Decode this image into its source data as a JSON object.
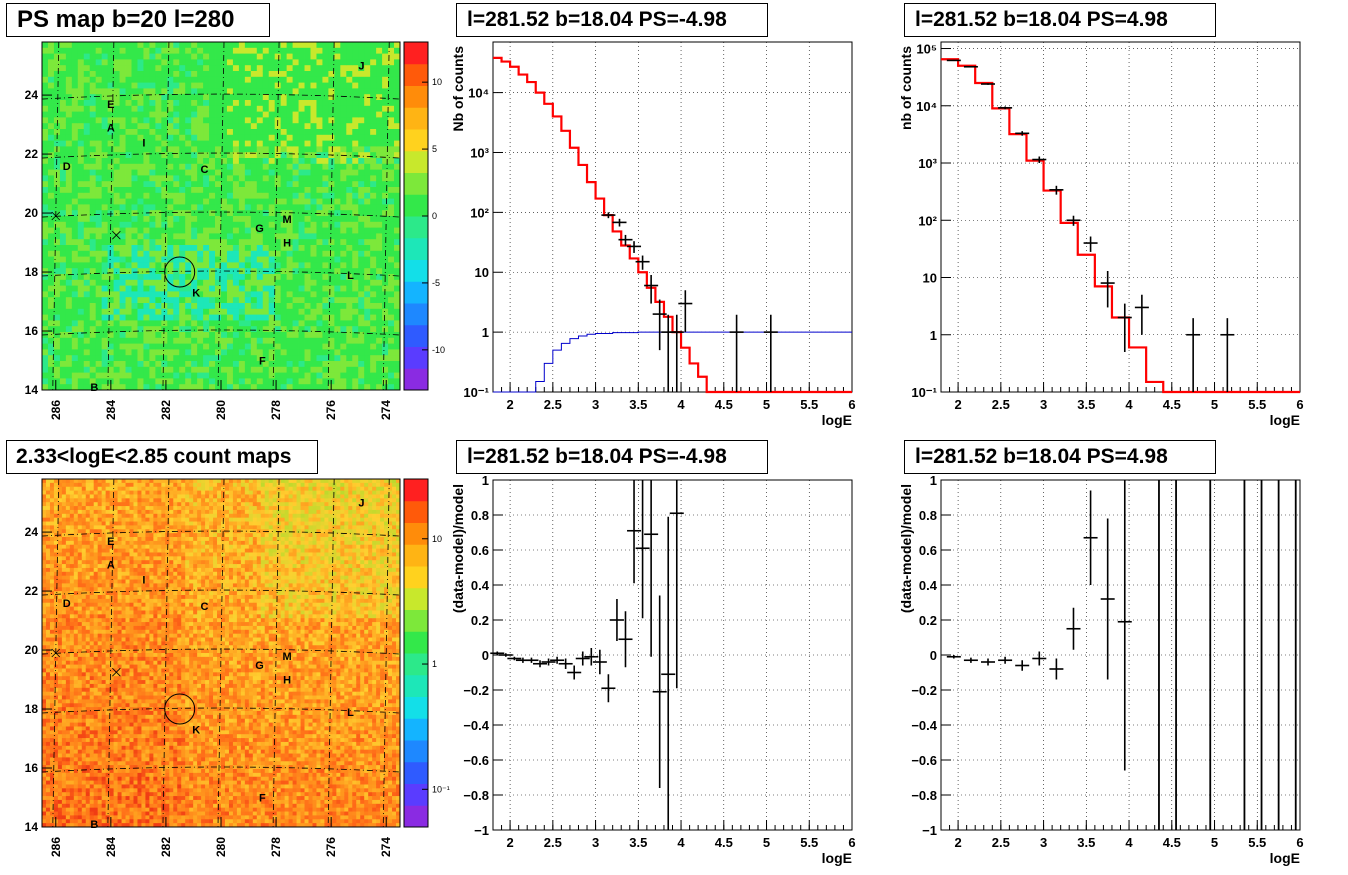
{
  "panels": {
    "map_ps": {
      "title": "PS map b=20 l=280",
      "xticks": [
        "286",
        "284",
        "282",
        "280",
        "278",
        "276",
        "274"
      ],
      "yticks": [
        "14",
        "16",
        "18",
        "20",
        "22",
        "24"
      ],
      "colorbar_ticks": [
        "10",
        "5",
        "0",
        "-5",
        "-10"
      ],
      "labels": [
        "A",
        "B",
        "C",
        "D",
        "E",
        "F",
        "G",
        "H",
        "I",
        "J",
        "K",
        "L",
        "M"
      ]
    },
    "map_counts": {
      "title": "2.33<logE<2.85 count maps",
      "xticks": [
        "286",
        "284",
        "282",
        "280",
        "278",
        "276",
        "274"
      ],
      "yticks": [
        "14",
        "16",
        "18",
        "20",
        "22",
        "24"
      ],
      "colorbar_ticks": [
        "10",
        "1",
        "10⁻¹"
      ],
      "labels": [
        "A",
        "B",
        "C",
        "D",
        "E",
        "F",
        "G",
        "H",
        "I",
        "J",
        "K",
        "L",
        "M"
      ]
    },
    "spec_neg": {
      "title": "l=281.52 b=18.04 PS=-4.98",
      "xlabel": "logE",
      "ylabel": "Nb of counts",
      "xticks": [
        "2",
        "2.5",
        "3",
        "3.5",
        "4",
        "4.5",
        "5",
        "5.5",
        "6"
      ],
      "yticks": [
        "10⁻¹",
        "1",
        "10",
        "10²",
        "10³",
        "10⁴"
      ]
    },
    "spec_pos": {
      "title": "l=281.52 b=18.04 PS=4.98",
      "xlabel": "logE",
      "ylabel": "nb of counts",
      "xticks": [
        "2",
        "2.5",
        "3",
        "3.5",
        "4",
        "4.5",
        "5",
        "5.5",
        "6"
      ],
      "yticks": [
        "10⁻¹",
        "1",
        "10",
        "10²",
        "10³",
        "10⁴",
        "10⁵"
      ]
    },
    "res_neg": {
      "title": "l=281.52 b=18.04 PS=-4.98",
      "xlabel": "logE",
      "ylabel": "(data-model)/model",
      "xticks": [
        "2",
        "2.5",
        "3",
        "3.5",
        "4",
        "4.5",
        "5",
        "5.5",
        "6"
      ],
      "yticks": [
        "−1",
        "−0.8",
        "−0.6",
        "−0.4",
        "−0.2",
        "0",
        "0.2",
        "0.4",
        "0.6",
        "0.8",
        "1"
      ]
    },
    "res_pos": {
      "title": "l=281.52 b=18.04 PS=4.98",
      "xlabel": "logE",
      "ylabel": "(data-model)/model",
      "xticks": [
        "2",
        "2.5",
        "3",
        "3.5",
        "4",
        "4.5",
        "5",
        "5.5",
        "6"
      ],
      "yticks": [
        "−1",
        "−0.8",
        "−0.6",
        "−0.4",
        "−0.2",
        "0",
        "0.2",
        "0.4",
        "0.6",
        "0.8",
        "1"
      ]
    }
  },
  "colors": {
    "model_line": "#ff0000",
    "exposure_line": "#0000cc",
    "data": "#000000",
    "map_green": "#33e84a",
    "map_orange": "#ff8c00"
  },
  "chart_data": [
    {
      "type": "heatmap",
      "title": "PS map b=20 l=280",
      "xlabel": "",
      "ylabel": "",
      "xlim": [
        286.5,
        273.5
      ],
      "ylim": [
        14,
        25.8
      ],
      "colorbar_range": [
        -13,
        13
      ],
      "markers": [
        {
          "label": "A",
          "x": 284.0,
          "y": 22.9
        },
        {
          "label": "B",
          "x": 284.6,
          "y": 14.1
        },
        {
          "label": "C",
          "x": 280.6,
          "y": 21.5
        },
        {
          "label": "D",
          "x": 285.6,
          "y": 21.6
        },
        {
          "label": "E",
          "x": 284.0,
          "y": 23.7
        },
        {
          "label": "F",
          "x": 278.5,
          "y": 15.0
        },
        {
          "label": "G",
          "x": 278.6,
          "y": 19.5
        },
        {
          "label": "H",
          "x": 277.6,
          "y": 19.0
        },
        {
          "label": "I",
          "x": 282.8,
          "y": 22.4
        },
        {
          "label": "J",
          "x": 274.9,
          "y": 25.0
        },
        {
          "label": "K",
          "x": 280.9,
          "y": 17.3
        },
        {
          "label": "L",
          "x": 275.3,
          "y": 17.9
        },
        {
          "label": "M",
          "x": 277.6,
          "y": 19.8
        }
      ],
      "source_circle": {
        "x": 281.5,
        "y": 18.0
      }
    },
    {
      "type": "heatmap",
      "title": "2.33<logE<2.85 count maps",
      "xlabel": "",
      "ylabel": "",
      "xlim": [
        286.5,
        273.5
      ],
      "ylim": [
        14,
        25.8
      ],
      "colorbar_scale": "log",
      "colorbar_range": [
        0.05,
        30
      ],
      "source_circle": {
        "x": 281.5,
        "y": 18.0
      }
    },
    {
      "type": "line",
      "title": "l=281.52 b=18.04 PS=-4.98",
      "xlabel": "logE",
      "ylabel": "Nb of counts",
      "xlim": [
        1.8,
        6
      ],
      "ylim": [
        0.1,
        70000
      ],
      "yscale": "log",
      "series": [
        {
          "name": "",
          "style": "model",
          "x": [
            1.8,
            1.9,
            2.0,
            2.1,
            2.2,
            2.3,
            2.4,
            2.5,
            2.6,
            2.7,
            2.8,
            2.9,
            3.0,
            3.1,
            3.2,
            3.3,
            3.4,
            3.5,
            3.6,
            3.7,
            3.8,
            3.9,
            4.0,
            4.1,
            4.2,
            4.3,
            6.0
          ],
          "y": [
            38000,
            33000,
            27000,
            20000,
            15000,
            10000,
            6500,
            4000,
            2300,
            1200,
            620,
            320,
            170,
            90,
            48,
            28,
            17,
            10,
            5.5,
            3.2,
            1.8,
            1.0,
            0.55,
            0.3,
            0.18,
            0.1,
            0.1
          ]
        },
        {
          "name": "",
          "style": "exposure",
          "x": [
            1.8,
            2.2,
            2.3,
            2.4,
            2.5,
            2.6,
            2.7,
            2.8,
            2.9,
            3.0,
            3.2,
            3.5,
            4.0,
            6.0
          ],
          "y": [
            0.1,
            0.1,
            0.15,
            0.3,
            0.5,
            0.65,
            0.78,
            0.86,
            0.92,
            0.95,
            0.98,
            1.0,
            1.0,
            1.0
          ]
        },
        {
          "name": "",
          "style": "data",
          "x": [
            3.15,
            3.28,
            3.35,
            3.45,
            3.55,
            3.65,
            3.75,
            3.85,
            3.95,
            4.05,
            4.65,
            5.05
          ],
          "y": [
            90,
            68,
            35,
            27,
            15,
            6,
            2,
            1,
            1,
            3,
            1,
            1
          ],
          "err": [
            10,
            10,
            7,
            6,
            4,
            3,
            1.5,
            0.95,
            0.95,
            2,
            0.95,
            0.95
          ]
        }
      ]
    },
    {
      "type": "line",
      "title": "l=281.52 b=18.04 PS=4.98",
      "xlabel": "logE",
      "ylabel": "nb of counts",
      "xlim": [
        1.8,
        6
      ],
      "ylim": [
        0.1,
        130000
      ],
      "yscale": "log",
      "series": [
        {
          "name": "",
          "style": "model",
          "x": [
            1.8,
            2.0,
            2.2,
            2.4,
            2.6,
            2.8,
            3.0,
            3.2,
            3.4,
            3.6,
            3.8,
            4.0,
            4.2,
            4.4,
            6.0
          ],
          "y": [
            65000,
            50000,
            25000,
            9000,
            3200,
            1100,
            330,
            90,
            25,
            7,
            2,
            0.6,
            0.15,
            0.1,
            0.1
          ]
        },
        {
          "name": "",
          "style": "data",
          "x": [
            1.95,
            2.15,
            2.35,
            2.55,
            2.75,
            2.95,
            3.15,
            3.35,
            3.55,
            3.75,
            3.95,
            4.15,
            4.75,
            5.15
          ],
          "y": [
            62000,
            48000,
            24000,
            9200,
            3300,
            1150,
            340,
            100,
            40,
            8,
            2,
            3,
            1,
            1
          ],
          "err": [
            1500,
            1200,
            800,
            500,
            300,
            150,
            60,
            20,
            12,
            5,
            1.5,
            2,
            0.95,
            0.95
          ]
        }
      ]
    },
    {
      "type": "scatter",
      "title": "l=281.52 b=18.04 PS=-4.98",
      "xlabel": "logE",
      "ylabel": "(data-model)/model",
      "xlim": [
        1.8,
        6
      ],
      "ylim": [
        -1,
        1
      ],
      "series": [
        {
          "name": "",
          "x": [
            1.85,
            1.95,
            2.05,
            2.15,
            2.25,
            2.35,
            2.45,
            2.55,
            2.65,
            2.75,
            2.85,
            2.95,
            3.05,
            3.15,
            3.25,
            3.35,
            3.45,
            3.55,
            3.65,
            3.75,
            3.85,
            3.95
          ],
          "y": [
            0.01,
            0.0,
            -0.02,
            -0.03,
            -0.03,
            -0.05,
            -0.04,
            -0.03,
            -0.05,
            -0.1,
            -0.02,
            -0.01,
            -0.04,
            -0.19,
            0.2,
            0.09,
            0.71,
            0.61,
            0.69,
            -0.21,
            -0.11,
            0.81
          ],
          "err": [
            0.01,
            0.01,
            0.01,
            0.015,
            0.015,
            0.02,
            0.02,
            0.02,
            0.03,
            0.04,
            0.04,
            0.05,
            0.07,
            0.08,
            0.12,
            0.16,
            0.3,
            0.4,
            0.7,
            0.55,
            0.9,
            1.0
          ]
        }
      ]
    },
    {
      "type": "scatter",
      "title": "l=281.52 b=18.04 PS=4.98",
      "xlabel": "logE",
      "ylabel": "(data-model)/model",
      "xlim": [
        1.8,
        6
      ],
      "ylim": [
        -1,
        1
      ],
      "series": [
        {
          "name": "",
          "x": [
            1.95,
            2.15,
            2.35,
            2.55,
            2.75,
            2.95,
            3.15,
            3.35,
            3.55,
            3.75,
            3.95
          ],
          "y": [
            -0.01,
            -0.03,
            -0.04,
            -0.03,
            -0.06,
            -0.02,
            -0.08,
            0.15,
            0.67,
            0.32,
            0.19
          ],
          "err": [
            0.01,
            0.015,
            0.02,
            0.02,
            0.03,
            0.04,
            0.06,
            0.12,
            0.27,
            0.46,
            0.85
          ]
        }
      ],
      "full_height_bars_x": [
        4.35,
        4.55,
        4.95,
        5.35,
        5.55,
        5.75,
        5.95
      ]
    }
  ]
}
